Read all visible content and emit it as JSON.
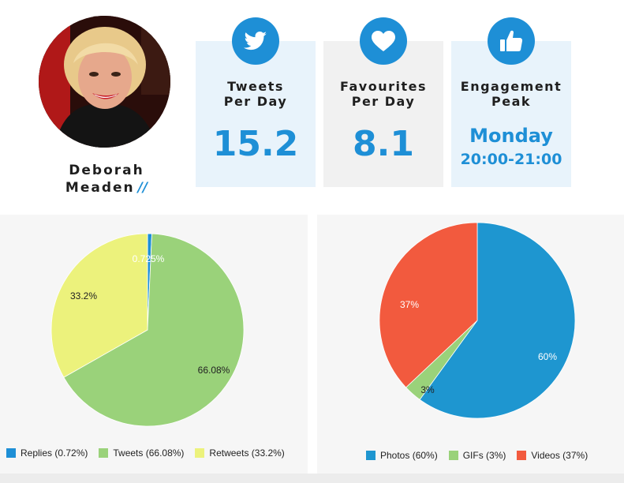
{
  "profile": {
    "name_line1": "Deborah",
    "name_line2": "Meaden",
    "name_suffix": "//"
  },
  "stats": {
    "tweets": {
      "label_line1": "Tweets",
      "label_line2": "Per Day",
      "value": "15.2",
      "icon": "twitter-bird-icon"
    },
    "favourites": {
      "label_line1": "Favourites",
      "label_line2": "Per Day",
      "value": "8.1",
      "icon": "heart-icon"
    },
    "engagement": {
      "label_line1": "Engagement",
      "label_line2": "Peak",
      "day": "Monday",
      "time": "20:00-21:00",
      "icon": "thumbs-up-icon"
    }
  },
  "colors": {
    "accent": "#1e8fd6",
    "replies": "#1e8fd6",
    "tweets": "#9ad27a",
    "retweets": "#ecf27c",
    "photos": "#1e96d0",
    "gifs": "#9ad27a",
    "videos": "#f25a3e"
  },
  "chart_data": [
    {
      "type": "pie",
      "slices": [
        {
          "name": "Replies",
          "value": 0.72,
          "label": "0.725%",
          "legend": "Replies (0.72%)"
        },
        {
          "name": "Tweets",
          "value": 66.08,
          "label": "66.08%",
          "legend": "Tweets (66.08%)"
        },
        {
          "name": "Retweets",
          "value": 33.2,
          "label": "33.2%",
          "legend": "Retweets (33.2%)"
        }
      ],
      "legend_position": "bottom"
    },
    {
      "type": "pie",
      "slices": [
        {
          "name": "Photos",
          "value": 60,
          "label": "60%",
          "legend": "Photos (60%)"
        },
        {
          "name": "GIFs",
          "value": 3,
          "label": "3%",
          "legend": "GIFs (3%)"
        },
        {
          "name": "Videos",
          "value": 37,
          "label": "37%",
          "legend": "Videos (37%)"
        }
      ],
      "legend_position": "bottom"
    }
  ]
}
